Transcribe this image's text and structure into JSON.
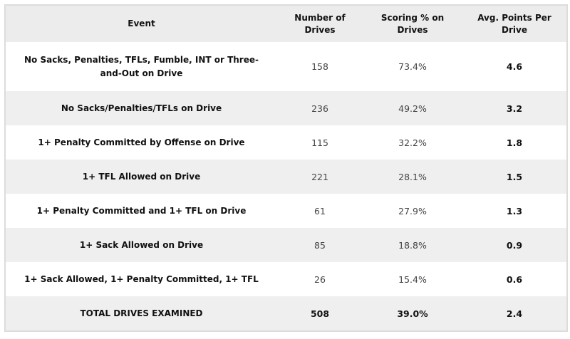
{
  "headers": [
    "Event",
    "Number of Drives",
    "Scoring % on Drives",
    "Avg. Points Per Drive"
  ],
  "rows": [
    {
      "event": "No Sacks, Penalties, TFLs, Fumble, INT or Three-and-Out on Drive",
      "drives": "158",
      "scoring": "73.4%",
      "avg": "4.6"
    },
    {
      "event": "No Sacks/Penalties/TFLs on Drive",
      "drives": "236",
      "scoring": "49.2%",
      "avg": "3.2"
    },
    {
      "event": "1+ Penalty Committed by Offense on Drive",
      "drives": "115",
      "scoring": "32.2%",
      "avg": "1.8"
    },
    {
      "event": "1+ TFL Allowed on Drive",
      "drives": "221",
      "scoring": "28.1%",
      "avg": "1.5"
    },
    {
      "event": "1+ Penalty Committed and 1+ TFL on Drive",
      "drives": "61",
      "scoring": "27.9%",
      "avg": "1.3"
    },
    {
      "event": "1+ Sack Allowed on Drive",
      "drives": "85",
      "scoring": "18.8%",
      "avg": "0.9"
    },
    {
      "event": "1+ Sack Allowed, 1+ Penalty Committed, 1+ TFL",
      "drives": "26",
      "scoring": "15.4%",
      "avg": "0.6"
    },
    {
      "event": "TOTAL DRIVES EXAMINED",
      "drives": "508",
      "scoring": "39.0%",
      "avg": "2.4"
    }
  ]
}
